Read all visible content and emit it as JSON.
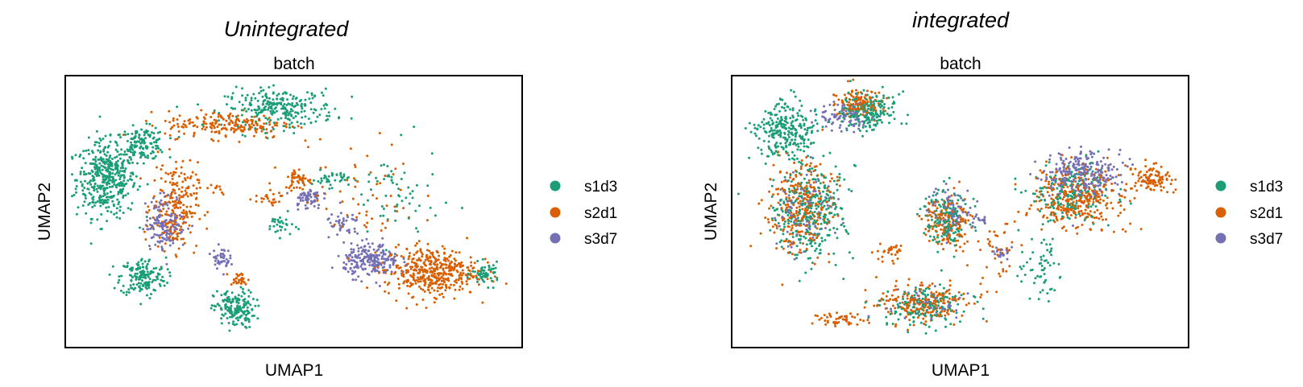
{
  "chart_data": [
    {
      "type": "scatter",
      "figure_title": "Unintegrated",
      "title": "batch",
      "xlabel": "UMAP1",
      "ylabel": "UMAP2",
      "grid": false,
      "ticks": false,
      "legend": {
        "placement": "right",
        "entries": [
          "s1d3",
          "s2d1",
          "s3d7"
        ]
      },
      "series": [
        {
          "name": "s1d3",
          "color": "#1b9e77",
          "clusters": [
            {
              "x": 0.09,
              "y": 0.62,
              "rx": 0.065,
              "ry": 0.14,
              "n": 420
            },
            {
              "x": 0.17,
              "y": 0.75,
              "rx": 0.05,
              "ry": 0.06,
              "n": 140
            },
            {
              "x": 0.17,
              "y": 0.26,
              "rx": 0.05,
              "ry": 0.07,
              "n": 170
            },
            {
              "x": 0.37,
              "y": 0.14,
              "rx": 0.045,
              "ry": 0.07,
              "n": 170
            },
            {
              "x": 0.47,
              "y": 0.88,
              "rx": 0.12,
              "ry": 0.07,
              "n": 260
            },
            {
              "x": 0.58,
              "y": 0.62,
              "rx": 0.04,
              "ry": 0.03,
              "n": 40
            },
            {
              "x": 0.47,
              "y": 0.45,
              "rx": 0.03,
              "ry": 0.04,
              "n": 30
            },
            {
              "x": 0.92,
              "y": 0.27,
              "rx": 0.03,
              "ry": 0.04,
              "n": 60
            },
            {
              "x": 0.72,
              "y": 0.55,
              "rx": 0.1,
              "ry": 0.18,
              "n": 60
            }
          ]
        },
        {
          "name": "s2d1",
          "color": "#d95f02",
          "clusters": [
            {
              "x": 0.24,
              "y": 0.52,
              "rx": 0.05,
              "ry": 0.16,
              "n": 220
            },
            {
              "x": 0.38,
              "y": 0.25,
              "rx": 0.02,
              "ry": 0.025,
              "n": 30
            },
            {
              "x": 0.36,
              "y": 0.82,
              "rx": 0.14,
              "ry": 0.05,
              "n": 200
            },
            {
              "x": 0.51,
              "y": 0.62,
              "rx": 0.03,
              "ry": 0.04,
              "n": 50
            },
            {
              "x": 0.8,
              "y": 0.28,
              "rx": 0.1,
              "ry": 0.09,
              "n": 420
            },
            {
              "x": 0.44,
              "y": 0.55,
              "rx": 0.04,
              "ry": 0.03,
              "n": 25
            },
            {
              "x": 0.33,
              "y": 0.58,
              "rx": 0.02,
              "ry": 0.02,
              "n": 10
            },
            {
              "x": 0.65,
              "y": 0.55,
              "rx": 0.12,
              "ry": 0.2,
              "n": 60
            }
          ]
        },
        {
          "name": "s3d7",
          "color": "#7570b3",
          "clusters": [
            {
              "x": 0.22,
              "y": 0.46,
              "rx": 0.045,
              "ry": 0.1,
              "n": 150
            },
            {
              "x": 0.34,
              "y": 0.33,
              "rx": 0.02,
              "ry": 0.04,
              "n": 45
            },
            {
              "x": 0.53,
              "y": 0.55,
              "rx": 0.03,
              "ry": 0.04,
              "n": 60
            },
            {
              "x": 0.67,
              "y": 0.32,
              "rx": 0.06,
              "ry": 0.06,
              "n": 220
            },
            {
              "x": 0.61,
              "y": 0.45,
              "rx": 0.04,
              "ry": 0.05,
              "n": 40
            }
          ]
        }
      ]
    },
    {
      "type": "scatter",
      "figure_title": "integrated",
      "title": "batch",
      "xlabel": "UMAP1",
      "ylabel": "UMAP2",
      "grid": false,
      "ticks": false,
      "legend": {
        "placement": "right",
        "entries": [
          "s1d3",
          "s2d1",
          "s3d7"
        ]
      },
      "series": [
        {
          "name": "s1d3",
          "color": "#1b9e77",
          "clusters": [
            {
              "x": 0.12,
              "y": 0.8,
              "rx": 0.07,
              "ry": 0.1,
              "n": 260
            },
            {
              "x": 0.17,
              "y": 0.5,
              "rx": 0.08,
              "ry": 0.17,
              "n": 300
            },
            {
              "x": 0.3,
              "y": 0.87,
              "rx": 0.06,
              "ry": 0.07,
              "n": 180
            },
            {
              "x": 0.47,
              "y": 0.48,
              "rx": 0.05,
              "ry": 0.11,
              "n": 140
            },
            {
              "x": 0.74,
              "y": 0.57,
              "rx": 0.09,
              "ry": 0.12,
              "n": 170
            },
            {
              "x": 0.42,
              "y": 0.15,
              "rx": 0.09,
              "ry": 0.07,
              "n": 150
            },
            {
              "x": 0.68,
              "y": 0.3,
              "rx": 0.05,
              "ry": 0.15,
              "n": 60
            }
          ]
        },
        {
          "name": "s2d1",
          "color": "#d95f02",
          "clusters": [
            {
              "x": 0.15,
              "y": 0.52,
              "rx": 0.07,
              "ry": 0.17,
              "n": 280
            },
            {
              "x": 0.28,
              "y": 0.9,
              "rx": 0.05,
              "ry": 0.05,
              "n": 130
            },
            {
              "x": 0.47,
              "y": 0.47,
              "rx": 0.05,
              "ry": 0.1,
              "n": 140
            },
            {
              "x": 0.76,
              "y": 0.55,
              "rx": 0.1,
              "ry": 0.11,
              "n": 320
            },
            {
              "x": 0.92,
              "y": 0.62,
              "rx": 0.04,
              "ry": 0.05,
              "n": 100
            },
            {
              "x": 0.42,
              "y": 0.16,
              "rx": 0.1,
              "ry": 0.07,
              "n": 200
            },
            {
              "x": 0.24,
              "y": 0.1,
              "rx": 0.05,
              "ry": 0.025,
              "n": 50
            },
            {
              "x": 0.35,
              "y": 0.35,
              "rx": 0.04,
              "ry": 0.04,
              "n": 30
            },
            {
              "x": 0.58,
              "y": 0.35,
              "rx": 0.06,
              "ry": 0.12,
              "n": 40
            }
          ]
        },
        {
          "name": "s3d7",
          "color": "#7570b3",
          "clusters": [
            {
              "x": 0.25,
              "y": 0.85,
              "rx": 0.06,
              "ry": 0.05,
              "n": 90
            },
            {
              "x": 0.16,
              "y": 0.5,
              "rx": 0.06,
              "ry": 0.15,
              "n": 100
            },
            {
              "x": 0.48,
              "y": 0.5,
              "rx": 0.05,
              "ry": 0.09,
              "n": 90
            },
            {
              "x": 0.77,
              "y": 0.64,
              "rx": 0.08,
              "ry": 0.08,
              "n": 260
            },
            {
              "x": 0.59,
              "y": 0.35,
              "rx": 0.02,
              "ry": 0.025,
              "n": 20
            },
            {
              "x": 0.42,
              "y": 0.15,
              "rx": 0.08,
              "ry": 0.06,
              "n": 50
            },
            {
              "x": 0.55,
              "y": 0.47,
              "rx": 0.02,
              "ry": 0.015,
              "n": 12
            }
          ]
        }
      ]
    }
  ]
}
